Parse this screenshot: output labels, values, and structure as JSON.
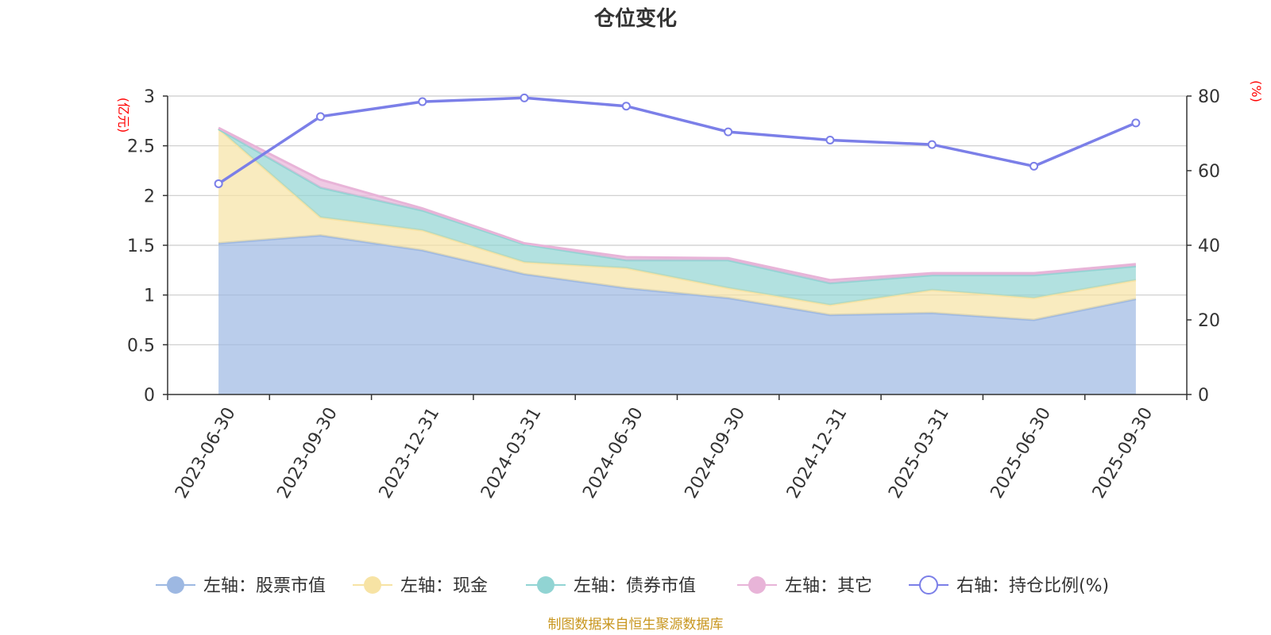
{
  "chart_data": {
    "type": "area",
    "title": "仓位变化",
    "categories": [
      "2023-06-30",
      "2023-09-30",
      "2023-12-31",
      "2024-03-31",
      "2024-06-30",
      "2024-09-30",
      "2024-12-31",
      "2025-03-31",
      "2025-06-30",
      "2025-09-30"
    ],
    "left_axis": {
      "unit": "(亿元)",
      "ylim": [
        0,
        3
      ],
      "ticks": [
        0,
        0.5,
        1,
        1.5,
        2,
        2.5,
        3
      ]
    },
    "right_axis": {
      "unit": "(%)",
      "ylim": [
        0,
        80
      ],
      "ticks": [
        0,
        20,
        40,
        60,
        80
      ]
    },
    "stack_series": [
      {
        "name": "左轴：股票市值",
        "color": "#9db8e2",
        "values": [
          1.52,
          1.6,
          1.45,
          1.21,
          1.07,
          0.97,
          0.8,
          0.82,
          0.75,
          0.96
        ]
      },
      {
        "name": "左轴：现金",
        "color": "#f7e3a4",
        "values": [
          1.15,
          0.18,
          0.2,
          0.12,
          0.2,
          0.1,
          0.1,
          0.23,
          0.22,
          0.19
        ]
      },
      {
        "name": "左轴：债券市值",
        "color": "#91d4d3",
        "values": [
          0.0,
          0.3,
          0.2,
          0.18,
          0.08,
          0.28,
          0.22,
          0.15,
          0.23,
          0.14
        ]
      },
      {
        "name": "左轴：其它",
        "color": "#e8b4d8",
        "values": [
          0.01,
          0.08,
          0.02,
          0.01,
          0.03,
          0.02,
          0.03,
          0.02,
          0.02,
          0.02
        ]
      }
    ],
    "line_series": {
      "name": "右轴：持仓比例(%)",
      "color": "#7b7fe8",
      "values": [
        56.5,
        74.5,
        78.5,
        79.5,
        77.3,
        70.4,
        68.2,
        67.0,
        61.2,
        72.8
      ]
    },
    "legend_position": "bottom",
    "grid": true
  },
  "footer": {
    "source": "制图数据来自恒生聚源数据库"
  }
}
